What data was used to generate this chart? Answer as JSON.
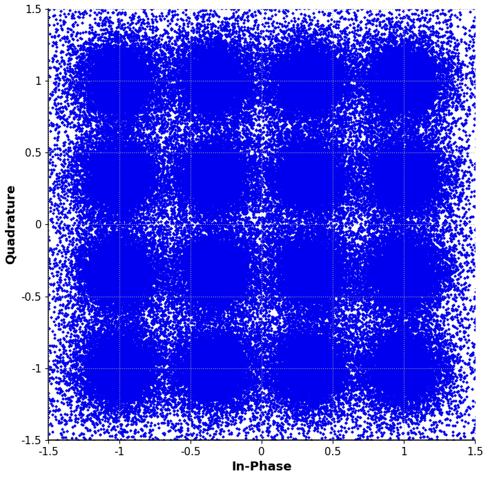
{
  "title": "",
  "xlabel": "In-Phase",
  "ylabel": "Quadrature",
  "xlim": [
    -1.5,
    1.5
  ],
  "ylim": [
    -1.5,
    1.5
  ],
  "xticks": [
    -1.5,
    -1.0,
    -0.5,
    0.0,
    0.5,
    1.0,
    1.5
  ],
  "yticks": [
    -1.5,
    -1.0,
    -0.5,
    0.0,
    0.5,
    1.0,
    1.5
  ],
  "point_color": "#0000EE",
  "marker_size": 2.5,
  "n_points_core": 8000,
  "n_points_medium": 4000,
  "n_points_outer": 2000,
  "cluster_centers": [
    [
      -1.0,
      -1.0
    ],
    [
      -1.0,
      -0.333
    ],
    [
      -1.0,
      0.333
    ],
    [
      -1.0,
      1.0
    ],
    [
      -0.333,
      -1.0
    ],
    [
      -0.333,
      -0.333
    ],
    [
      -0.333,
      0.333
    ],
    [
      -0.333,
      1.0
    ],
    [
      0.333,
      -1.0
    ],
    [
      0.333,
      -0.333
    ],
    [
      0.333,
      0.333
    ],
    [
      0.333,
      1.0
    ],
    [
      1.0,
      -1.0
    ],
    [
      1.0,
      -0.333
    ],
    [
      1.0,
      0.333
    ],
    [
      1.0,
      1.0
    ]
  ],
  "core_std": 0.07,
  "medium_std": 0.14,
  "outer_std": 0.22,
  "n_scatter_points": 8000,
  "figsize": [
    7.07,
    6.93
  ],
  "dpi": 100
}
